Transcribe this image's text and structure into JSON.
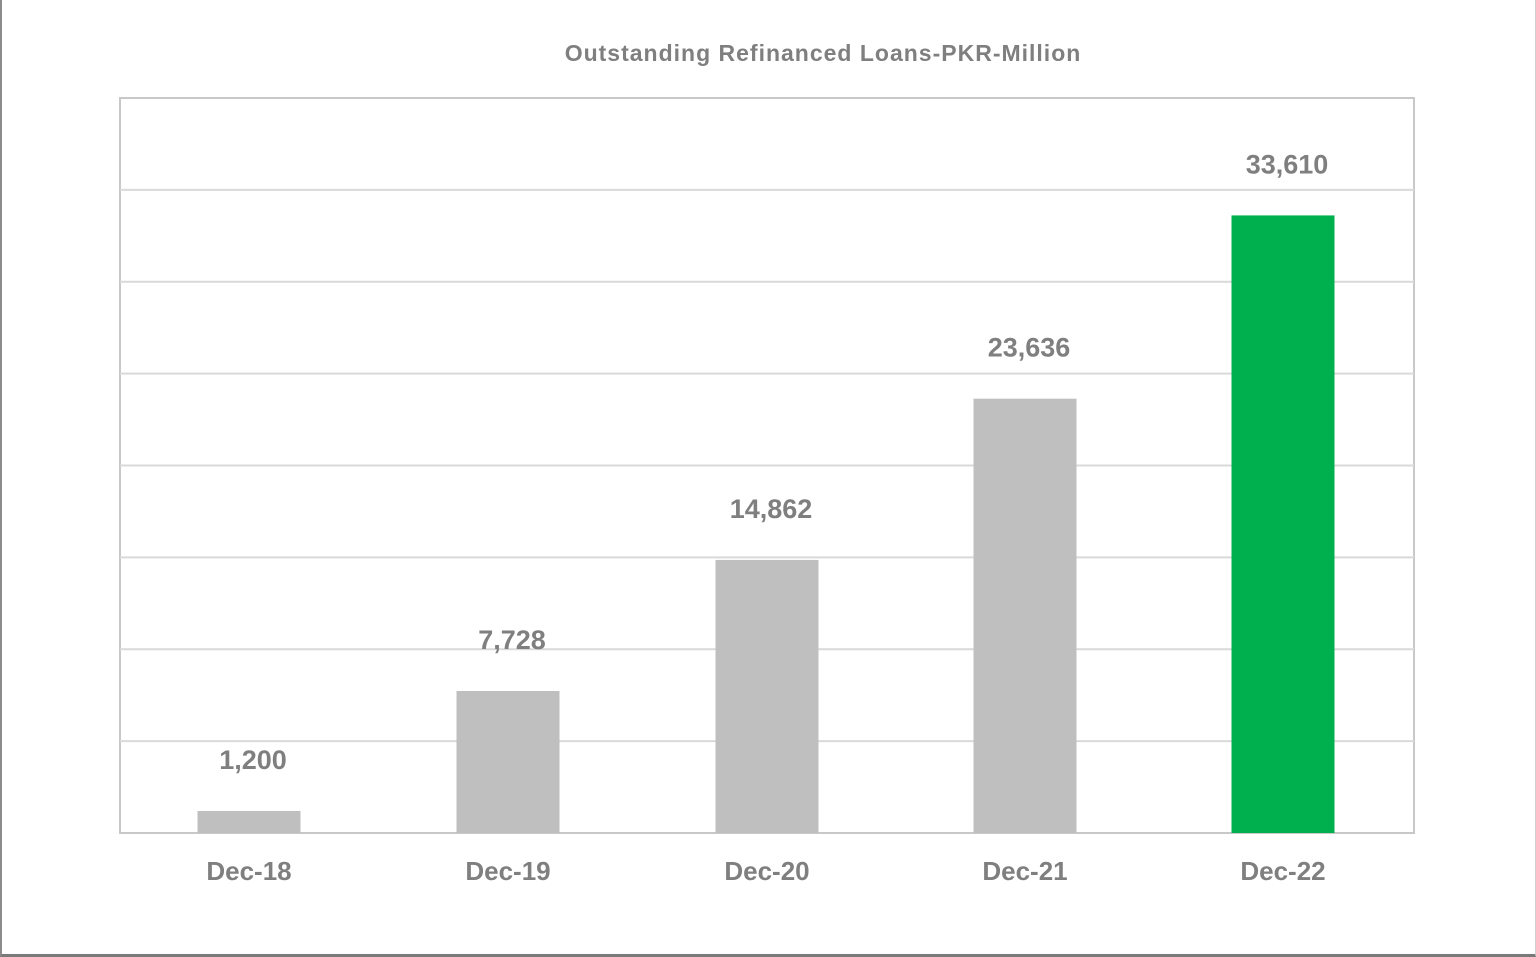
{
  "chart_data": {
    "type": "bar",
    "title": "Outstanding Refinanced Loans-PKR-Million",
    "categories": [
      "Dec-18",
      "Dec-19",
      "Dec-20",
      "Dec-21",
      "Dec-22"
    ],
    "values": [
      1200,
      7728,
      14862,
      23636,
      33610
    ],
    "data_labels": [
      "1,200",
      "7,728",
      "14,862",
      "23,636",
      "33,610"
    ],
    "xlabel": "",
    "ylabel": "",
    "ylim": [
      0,
      40000
    ],
    "grid": true,
    "legend": "none",
    "colors": {
      "default_bar": "#bfbfbf",
      "highlight_bar": "#00b04f",
      "text": "#7f7f7f",
      "gridline": "#d9d9d9"
    },
    "highlight_index": 4
  }
}
